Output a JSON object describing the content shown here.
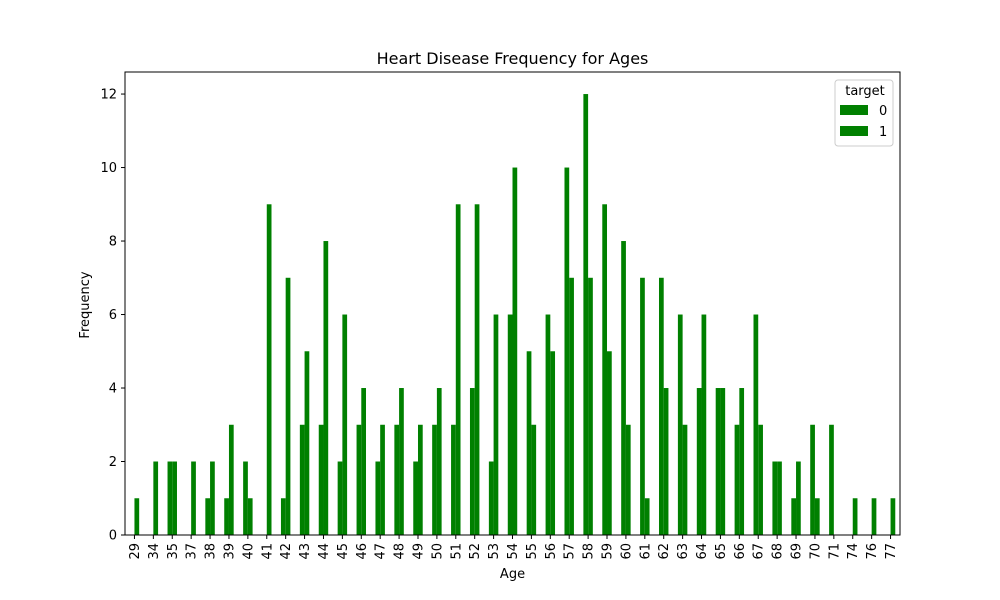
{
  "chart_data": {
    "type": "bar",
    "title": "Heart Disease Frequency for Ages",
    "xlabel": "Age",
    "ylabel": "Frequency",
    "ylim": [
      0,
      12.6
    ],
    "yticks": [
      0,
      2,
      4,
      6,
      8,
      10,
      12
    ],
    "categories": [
      "29",
      "34",
      "35",
      "37",
      "38",
      "39",
      "40",
      "41",
      "42",
      "43",
      "44",
      "45",
      "46",
      "47",
      "48",
      "49",
      "50",
      "51",
      "52",
      "53",
      "54",
      "55",
      "56",
      "57",
      "58",
      "59",
      "60",
      "61",
      "62",
      "63",
      "64",
      "65",
      "66",
      "67",
      "68",
      "69",
      "70",
      "71",
      "74",
      "76",
      "77"
    ],
    "legend": {
      "title": "target",
      "placement": "top-right"
    },
    "series": [
      {
        "name": "0",
        "color": "#008000",
        "values": [
          0,
          0,
          2,
          0,
          1,
          1,
          2,
          0,
          1,
          3,
          3,
          2,
          3,
          2,
          3,
          2,
          3,
          3,
          4,
          2,
          6,
          5,
          6,
          10,
          12,
          9,
          8,
          7,
          7,
          6,
          4,
          4,
          3,
          6,
          2,
          1,
          3,
          3,
          0,
          0,
          0
        ]
      },
      {
        "name": "1",
        "color": "#008000",
        "values": [
          1,
          2,
          2,
          2,
          2,
          3,
          1,
          9,
          7,
          5,
          8,
          6,
          4,
          3,
          4,
          3,
          4,
          9,
          9,
          6,
          10,
          3,
          5,
          7,
          7,
          5,
          3,
          1,
          4,
          3,
          6,
          4,
          4,
          3,
          2,
          2,
          1,
          0,
          1,
          1,
          1
        ]
      }
    ]
  }
}
